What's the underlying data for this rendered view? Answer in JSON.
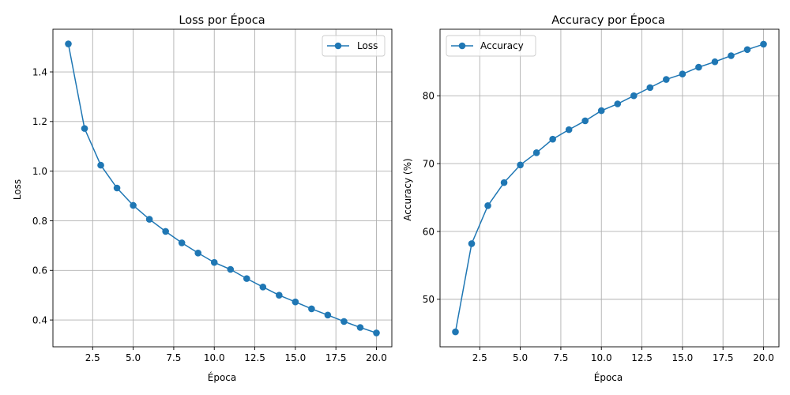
{
  "chart_data": [
    {
      "type": "line",
      "title": "Loss por Época",
      "xlabel": "Época",
      "ylabel": "Loss",
      "xlim": [
        0.05,
        20.95
      ],
      "ylim": [
        0.292,
        1.572
      ],
      "xticks": [
        2.5,
        5.0,
        7.5,
        10.0,
        12.5,
        15.0,
        17.5,
        20.0
      ],
      "xtick_labels": [
        "2.5",
        "5.0",
        "7.5",
        "10.0",
        "12.5",
        "15.0",
        "17.5",
        "20.0"
      ],
      "yticks": [
        0.4,
        0.6,
        0.8,
        1.0,
        1.2,
        1.4
      ],
      "ytick_labels": [
        "0.4",
        "0.6",
        "0.8",
        "1.0",
        "1.2",
        "1.4"
      ],
      "grid": true,
      "legend_position": "top-right",
      "color": "#1f77b4",
      "x": [
        1,
        2,
        3,
        4,
        5,
        6,
        7,
        8,
        9,
        10,
        11,
        12,
        13,
        14,
        15,
        16,
        17,
        18,
        19,
        20
      ],
      "series": [
        {
          "name": "Loss",
          "values": [
            1.513,
            1.172,
            1.024,
            0.932,
            0.862,
            0.806,
            0.757,
            0.711,
            0.67,
            0.632,
            0.604,
            0.567,
            0.533,
            0.5,
            0.473,
            0.445,
            0.42,
            0.394,
            0.37,
            0.348
          ]
        }
      ]
    },
    {
      "type": "line",
      "title": "Accuracy por Época",
      "xlabel": "Época",
      "ylabel": "Accuracy (%)",
      "xlim": [
        0.05,
        20.95
      ],
      "ylim": [
        43.0,
        89.8
      ],
      "xticks": [
        2.5,
        5.0,
        7.5,
        10.0,
        12.5,
        15.0,
        17.5,
        20.0
      ],
      "xtick_labels": [
        "2.5",
        "5.0",
        "7.5",
        "10.0",
        "12.5",
        "15.0",
        "17.5",
        "20.0"
      ],
      "yticks": [
        50,
        60,
        70,
        80
      ],
      "ytick_labels": [
        "50",
        "60",
        "70",
        "80"
      ],
      "grid": true,
      "legend_position": "top-left",
      "color": "#1f77b4",
      "x": [
        1,
        2,
        3,
        4,
        5,
        6,
        7,
        8,
        9,
        10,
        11,
        12,
        13,
        14,
        15,
        16,
        17,
        18,
        19,
        20
      ],
      "series": [
        {
          "name": "Accuracy",
          "values": [
            45.2,
            58.2,
            63.8,
            67.2,
            69.8,
            71.6,
            73.6,
            75.0,
            76.3,
            77.8,
            78.8,
            80.0,
            81.2,
            82.4,
            83.2,
            84.2,
            85.0,
            85.9,
            86.8,
            87.6
          ]
        }
      ]
    }
  ]
}
